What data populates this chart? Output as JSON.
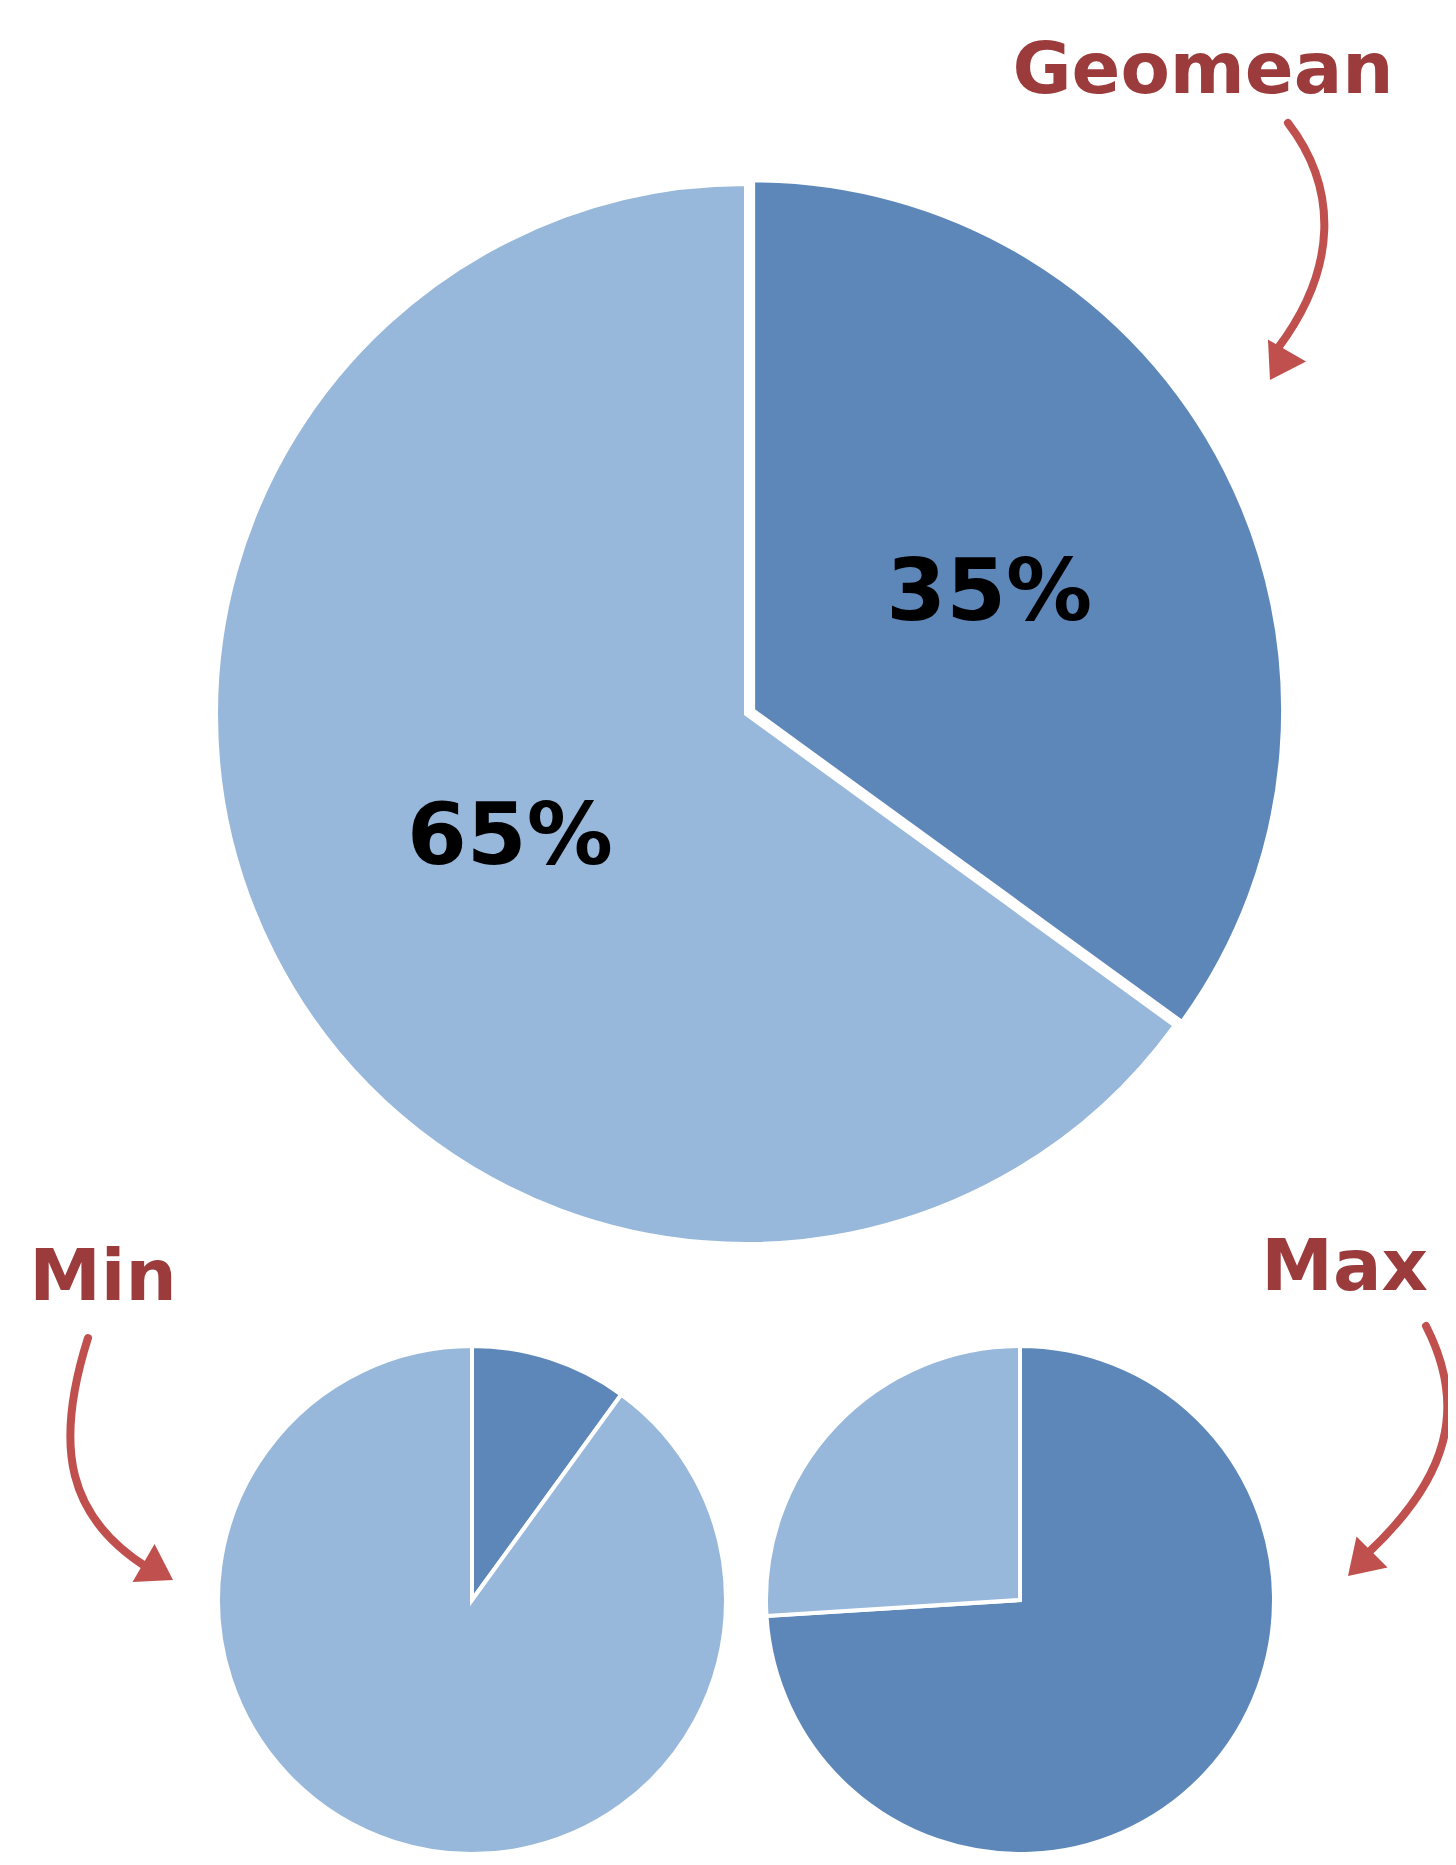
{
  "chart_data": [
    {
      "type": "pie",
      "title": "Geomean",
      "categories": [
        null,
        null
      ],
      "values": [
        35,
        65
      ],
      "colors": [
        "#5e87b9",
        "#97b8da"
      ],
      "value_labels": [
        "35%",
        "65%"
      ]
    },
    {
      "type": "pie",
      "title": "Min",
      "categories": [
        null,
        null
      ],
      "values": [
        10,
        90
      ],
      "colors": [
        "#5e87b9",
        "#97b8da"
      ]
    },
    {
      "type": "pie",
      "title": "Max",
      "categories": [
        null,
        null
      ],
      "values": [
        74,
        26
      ],
      "colors": [
        "#5e87b9",
        "#97b8da"
      ]
    }
  ]
}
